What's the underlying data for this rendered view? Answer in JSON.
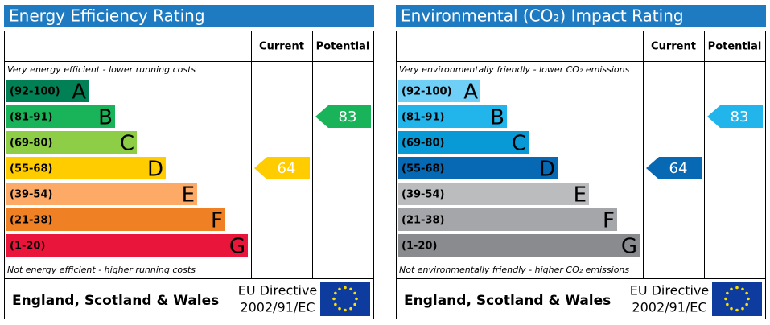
{
  "chart_data": [
    {
      "type": "epc",
      "title": "Energy Efficiency Rating",
      "columns": [
        "Current",
        "Potential"
      ],
      "top_note": "Very energy efficient - lower running costs",
      "bottom_note": "Not energy efficient - higher running costs",
      "bands": [
        {
          "range": "(92-100)",
          "letter": "A",
          "color": "#008054"
        },
        {
          "range": "(81-91)",
          "letter": "B",
          "color": "#19b459"
        },
        {
          "range": "(69-80)",
          "letter": "C",
          "color": "#8dce46"
        },
        {
          "range": "(55-68)",
          "letter": "D",
          "color": "#ffcc00"
        },
        {
          "range": "(39-54)",
          "letter": "E",
          "color": "#fcaa65"
        },
        {
          "range": "(21-38)",
          "letter": "F",
          "color": "#ef8023"
        },
        {
          "range": "(1-20)",
          "letter": "G",
          "color": "#e9153b"
        }
      ],
      "current": 64,
      "potential": 83,
      "region": "England, Scotland & Wales",
      "directive": "EU Directive",
      "directive_code": "2002/91/EC"
    },
    {
      "type": "epc",
      "title": "Environmental (CO₂) Impact Rating",
      "columns": [
        "Current",
        "Potential"
      ],
      "top_note": "Very environmentally friendly - lower CO₂ emissions",
      "bottom_note": "Not environmentally friendly - higher CO₂ emissions",
      "bands": [
        {
          "range": "(92-100)",
          "letter": "A",
          "color": "#6fcff6"
        },
        {
          "range": "(81-91)",
          "letter": "B",
          "color": "#22b5eb"
        },
        {
          "range": "(69-80)",
          "letter": "C",
          "color": "#079ad6"
        },
        {
          "range": "(55-68)",
          "letter": "D",
          "color": "#0768b4"
        },
        {
          "range": "(39-54)",
          "letter": "E",
          "color": "#bbbcbe"
        },
        {
          "range": "(21-38)",
          "letter": "F",
          "color": "#a5a6a9"
        },
        {
          "range": "(1-20)",
          "letter": "G",
          "color": "#8a8b8e"
        }
      ],
      "current": 64,
      "potential": 83,
      "region": "England, Scotland & Wales",
      "directive": "EU Directive",
      "directive_code": "2002/91/EC"
    }
  ]
}
